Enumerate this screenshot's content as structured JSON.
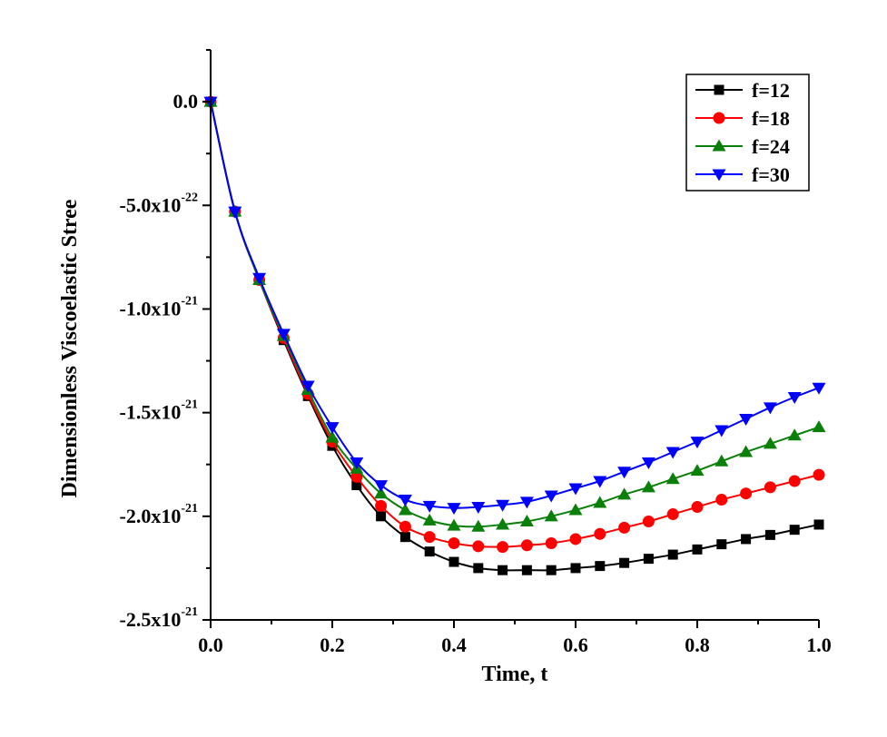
{
  "chart_data": {
    "type": "line",
    "xlabel": "Time, t",
    "ylabel": "Dimensionless Viscoelastic Stree",
    "xlim": [
      0.0,
      1.0
    ],
    "ylim": [
      -2.5e-21,
      2.5e-22
    ],
    "x_ticks": [
      {
        "value": 0.0,
        "label": "0.0"
      },
      {
        "value": 0.2,
        "label": "0.2"
      },
      {
        "value": 0.4,
        "label": "0.4"
      },
      {
        "value": 0.6,
        "label": "0.6"
      },
      {
        "value": 0.8,
        "label": "0.8"
      },
      {
        "value": 1.0,
        "label": "1.0"
      }
    ],
    "y_ticks": [
      {
        "value": 0.0,
        "mantissa": "0.0",
        "exponent": ""
      },
      {
        "value": -5e-22,
        "mantissa": "-5.0x10",
        "exponent": "-22"
      },
      {
        "value": -1e-21,
        "mantissa": "-1.0x10",
        "exponent": "-21"
      },
      {
        "value": -1.5e-21,
        "mantissa": "-1.5x10",
        "exponent": "-21"
      },
      {
        "value": -2e-21,
        "mantissa": "-2.0x10",
        "exponent": "-21"
      },
      {
        "value": -2.5e-21,
        "mantissa": "-2.5x10",
        "exponent": "-21"
      }
    ],
    "legend_position": "top-right",
    "x": [
      0.0,
      0.04,
      0.08,
      0.12,
      0.16,
      0.2,
      0.24,
      0.28,
      0.32,
      0.36,
      0.4,
      0.44,
      0.48,
      0.52,
      0.56,
      0.6,
      0.64,
      0.68,
      0.72,
      0.76,
      0.8,
      0.84,
      0.88,
      0.92,
      0.96,
      1.0
    ],
    "series": [
      {
        "name": "f=12",
        "color": "#000000",
        "marker": "square",
        "values": [
          0.0,
          -5.3e-22,
          -8.6e-22,
          -1.15e-21,
          -1.42e-21,
          -1.66e-21,
          -1.85e-21,
          -2e-21,
          -2.1e-21,
          -2.17e-21,
          -2.22e-21,
          -2.25e-21,
          -2.26e-21,
          -2.26e-21,
          -2.26e-21,
          -2.25e-21,
          -2.24e-21,
          -2.225e-21,
          -2.205e-21,
          -2.185e-21,
          -2.16e-21,
          -2.135e-21,
          -2.11e-21,
          -2.09e-21,
          -2.065e-21,
          -2.04e-21
        ]
      },
      {
        "name": "f=18",
        "color": "#ff0000",
        "marker": "circle",
        "values": [
          0.0,
          -5.3e-22,
          -8.6e-22,
          -1.14e-21,
          -1.41e-21,
          -1.64e-21,
          -1.81e-21,
          -1.95e-21,
          -2.05e-21,
          -2.1e-21,
          -2.13e-21,
          -2.145e-21,
          -2.148e-21,
          -2.14e-21,
          -2.13e-21,
          -2.11e-21,
          -2.085e-21,
          -2.055e-21,
          -2.025e-21,
          -1.99e-21,
          -1.955e-21,
          -1.92e-21,
          -1.89e-21,
          -1.86e-21,
          -1.83e-21,
          -1.8e-21
        ]
      },
      {
        "name": "f=24",
        "color": "#0a7f0a",
        "marker": "triangle-up",
        "values": [
          0.0,
          -5.3e-22,
          -8.6e-22,
          -1.13e-21,
          -1.39e-21,
          -1.62e-21,
          -1.77e-21,
          -1.89e-21,
          -1.97e-21,
          -2.02e-21,
          -2.045e-21,
          -2.05e-21,
          -2.04e-21,
          -2.025e-21,
          -2e-21,
          -1.97e-21,
          -1.935e-21,
          -1.895e-21,
          -1.86e-21,
          -1.82e-21,
          -1.78e-21,
          -1.735e-21,
          -1.69e-21,
          -1.65e-21,
          -1.61e-21,
          -1.57e-21
        ]
      },
      {
        "name": "f=30",
        "color": "#0000ff",
        "marker": "triangle-down",
        "values": [
          0.0,
          -5.3e-22,
          -8.5e-22,
          -1.12e-21,
          -1.37e-21,
          -1.57e-21,
          -1.74e-21,
          -1.85e-21,
          -1.92e-21,
          -1.95e-21,
          -1.96e-21,
          -1.955e-21,
          -1.945e-21,
          -1.93e-21,
          -1.9e-21,
          -1.865e-21,
          -1.83e-21,
          -1.785e-21,
          -1.74e-21,
          -1.69e-21,
          -1.64e-21,
          -1.585e-21,
          -1.53e-21,
          -1.475e-21,
          -1.425e-21,
          -1.38e-21
        ]
      }
    ]
  }
}
